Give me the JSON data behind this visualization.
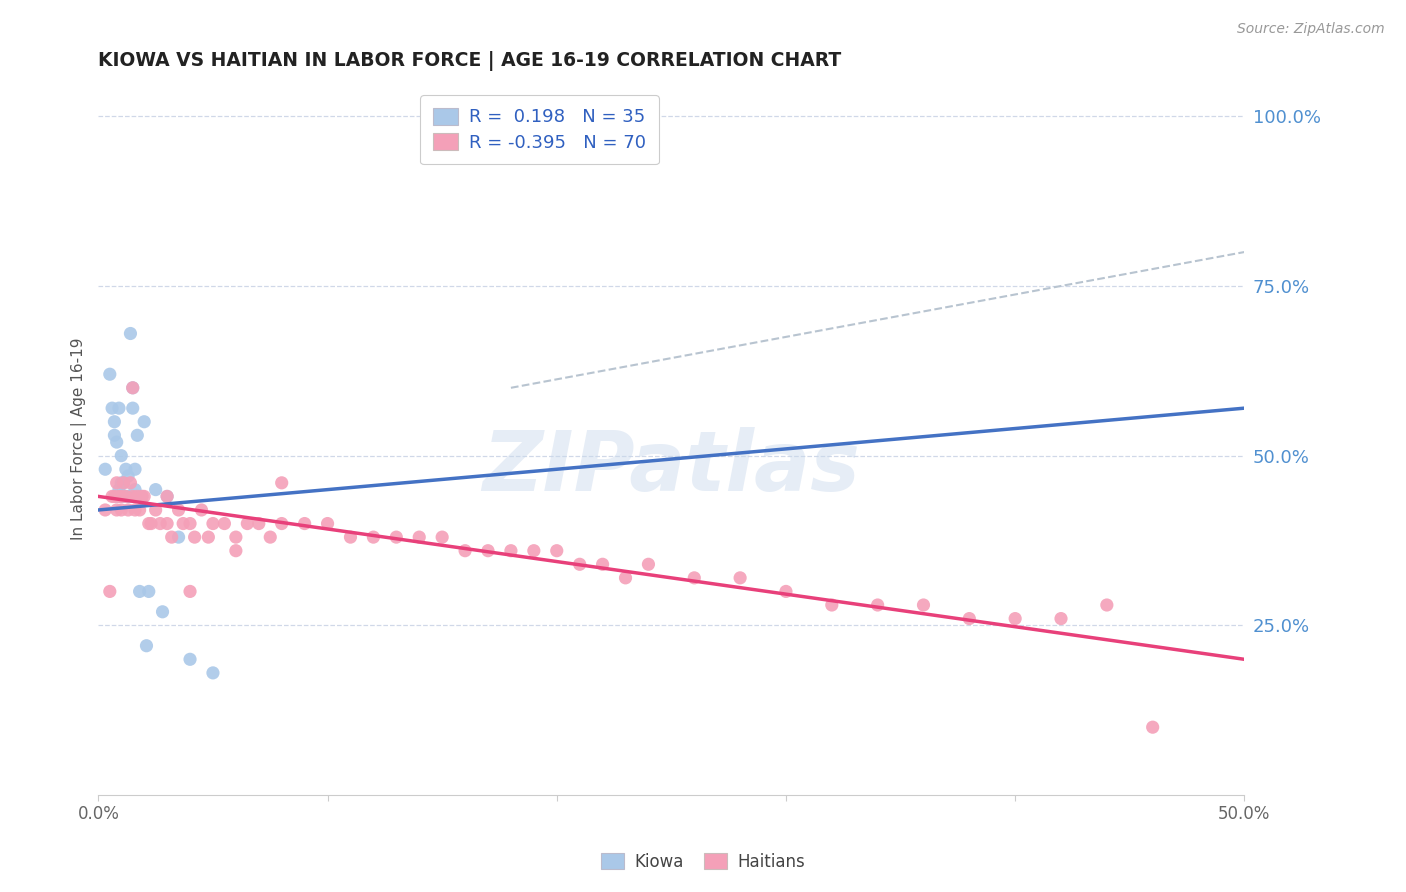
{
  "title": "KIOWA VS HAITIAN IN LABOR FORCE | AGE 16-19 CORRELATION CHART",
  "source": "Source: ZipAtlas.com",
  "ylabel": "In Labor Force | Age 16-19",
  "xlim": [
    0.0,
    0.5
  ],
  "ylim": [
    0.0,
    1.05
  ],
  "xtick_positions": [
    0.0,
    0.1,
    0.2,
    0.3,
    0.4,
    0.5
  ],
  "xtick_labels": [
    "0.0%",
    "",
    "",
    "",
    "",
    "50.0%"
  ],
  "ytick_vals_right": [
    1.0,
    0.75,
    0.5,
    0.25
  ],
  "ytick_labels_right": [
    "100.0%",
    "75.0%",
    "50.0%",
    "25.0%"
  ],
  "r_kiowa": 0.198,
  "n_kiowa": 35,
  "r_haitian": -0.395,
  "n_haitian": 70,
  "kiowa_color": "#aac8e8",
  "haitian_color": "#f4a0b8",
  "kiowa_line_color": "#4472c4",
  "haitian_line_color": "#e8407a",
  "diagonal_line_color": "#b8c4d0",
  "grid_color": "#d0d8e8",
  "right_label_color": "#5090d0",
  "legend_text_color": "#3060c0",
  "watermark": "ZIPatlas",
  "background_color": "#ffffff",
  "kiowa_x": [
    0.003,
    0.005,
    0.006,
    0.007,
    0.007,
    0.008,
    0.008,
    0.009,
    0.009,
    0.01,
    0.01,
    0.01,
    0.011,
    0.011,
    0.012,
    0.012,
    0.013,
    0.013,
    0.014,
    0.015,
    0.015,
    0.016,
    0.016,
    0.017,
    0.018,
    0.019,
    0.02,
    0.021,
    0.022,
    0.025,
    0.028,
    0.03,
    0.035,
    0.04,
    0.05
  ],
  "kiowa_y": [
    0.48,
    0.62,
    0.57,
    0.55,
    0.53,
    0.52,
    0.44,
    0.45,
    0.57,
    0.44,
    0.46,
    0.5,
    0.44,
    0.46,
    0.44,
    0.48,
    0.44,
    0.47,
    0.68,
    0.57,
    0.6,
    0.45,
    0.48,
    0.53,
    0.3,
    0.44,
    0.55,
    0.22,
    0.3,
    0.45,
    0.27,
    0.44,
    0.38,
    0.2,
    0.18
  ],
  "haitian_x": [
    0.003,
    0.005,
    0.006,
    0.007,
    0.008,
    0.008,
    0.009,
    0.01,
    0.01,
    0.011,
    0.012,
    0.013,
    0.014,
    0.015,
    0.015,
    0.016,
    0.017,
    0.018,
    0.019,
    0.02,
    0.022,
    0.023,
    0.025,
    0.027,
    0.03,
    0.03,
    0.032,
    0.035,
    0.037,
    0.04,
    0.042,
    0.045,
    0.048,
    0.05,
    0.055,
    0.06,
    0.065,
    0.07,
    0.075,
    0.08,
    0.09,
    0.1,
    0.11,
    0.12,
    0.13,
    0.14,
    0.15,
    0.16,
    0.17,
    0.18,
    0.19,
    0.2,
    0.21,
    0.22,
    0.23,
    0.24,
    0.26,
    0.28,
    0.3,
    0.32,
    0.34,
    0.36,
    0.38,
    0.4,
    0.42,
    0.44,
    0.46,
    0.04,
    0.06,
    0.08
  ],
  "haitian_y": [
    0.42,
    0.3,
    0.44,
    0.44,
    0.46,
    0.42,
    0.44,
    0.44,
    0.42,
    0.46,
    0.44,
    0.42,
    0.46,
    0.44,
    0.6,
    0.42,
    0.44,
    0.42,
    0.44,
    0.44,
    0.4,
    0.4,
    0.42,
    0.4,
    0.4,
    0.44,
    0.38,
    0.42,
    0.4,
    0.4,
    0.38,
    0.42,
    0.38,
    0.4,
    0.4,
    0.38,
    0.4,
    0.4,
    0.38,
    0.4,
    0.4,
    0.4,
    0.38,
    0.38,
    0.38,
    0.38,
    0.38,
    0.36,
    0.36,
    0.36,
    0.36,
    0.36,
    0.34,
    0.34,
    0.32,
    0.34,
    0.32,
    0.32,
    0.3,
    0.28,
    0.28,
    0.28,
    0.26,
    0.26,
    0.26,
    0.28,
    0.1,
    0.3,
    0.36,
    0.46
  ],
  "kiowa_line_x": [
    0.0,
    0.5
  ],
  "kiowa_line_y": [
    0.42,
    0.57
  ],
  "haitian_line_x": [
    0.0,
    0.5
  ],
  "haitian_line_y": [
    0.44,
    0.2
  ],
  "diag_line_x": [
    0.18,
    0.5
  ],
  "diag_line_y": [
    0.6,
    0.8
  ]
}
